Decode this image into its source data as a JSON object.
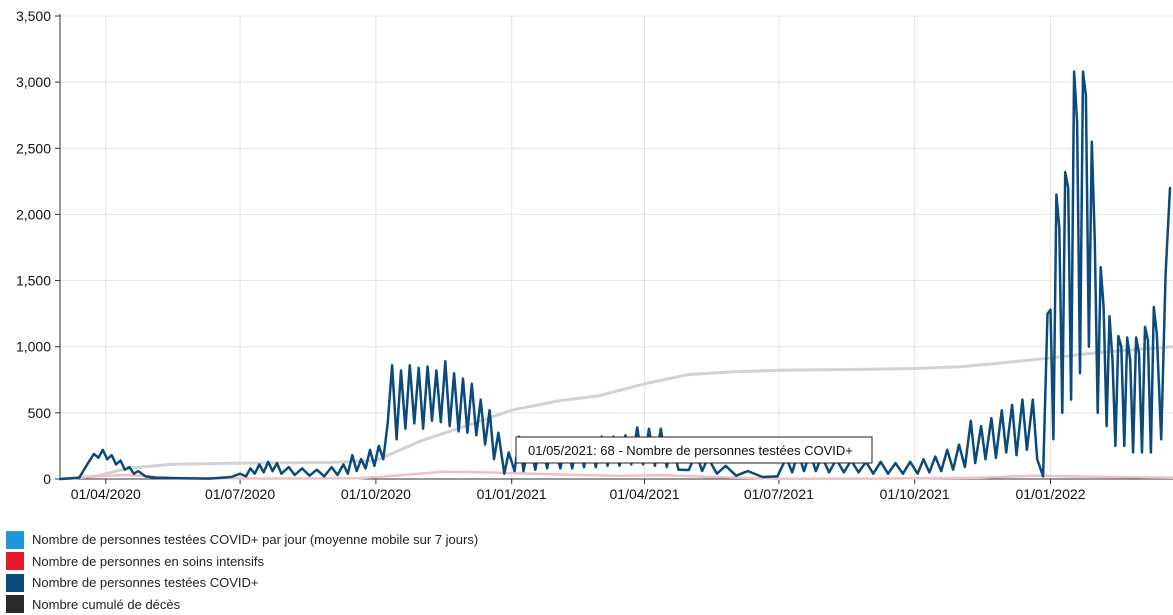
{
  "chart_data": {
    "type": "line",
    "x_axis": {
      "tick_labels": [
        "01/04/2020",
        "01/07/2020",
        "01/10/2020",
        "01/01/2021",
        "01/04/2021",
        "01/07/2021",
        "01/10/2021",
        "01/01/2022"
      ],
      "tick_dates": [
        "2020-04-01",
        "2020-07-01",
        "2020-10-01",
        "2021-01-01",
        "2021-04-01",
        "2021-07-01",
        "2021-10-01",
        "2022-01-01"
      ],
      "range": [
        "2020-03-01",
        "2022-03-25"
      ]
    },
    "y_axis": {
      "tick_labels": [
        "0",
        "500",
        "1,000",
        "1,500",
        "2,000",
        "2,500",
        "3,000",
        "3,500"
      ],
      "tick_values": [
        0,
        500,
        1000,
        1500,
        2000,
        2500,
        3000,
        3500
      ],
      "ylim": [
        0,
        3500
      ]
    },
    "grid": true,
    "legend_placement": "bottom-left",
    "series": [
      {
        "name": "Nombre de personnes testées COVID+ par jour (moyenne mobile sur 7 jours)",
        "color": "#1a9ad9",
        "points": []
      },
      {
        "name": "Nombre de personnes en soins intensifs",
        "color": "#e8192c",
        "points": [
          [
            "2020-03-01",
            0
          ],
          [
            "2020-03-25",
            20
          ],
          [
            "2020-04-15",
            30
          ],
          [
            "2020-05-15",
            10
          ],
          [
            "2020-07-15",
            3
          ],
          [
            "2020-09-20",
            5
          ],
          [
            "2020-10-20",
            30
          ],
          [
            "2020-11-15",
            55
          ],
          [
            "2020-12-15",
            50
          ],
          [
            "2021-01-15",
            40
          ],
          [
            "2021-02-15",
            30
          ],
          [
            "2021-03-15",
            25
          ],
          [
            "2021-04-15",
            28
          ],
          [
            "2021-05-15",
            15
          ],
          [
            "2021-07-01",
            2
          ],
          [
            "2021-09-01",
            3
          ],
          [
            "2021-11-15",
            10
          ],
          [
            "2021-12-20",
            25
          ],
          [
            "2022-01-15",
            20
          ],
          [
            "2022-03-25",
            10
          ]
        ]
      },
      {
        "name": "Nombre de personnes testées COVID+",
        "color": "#0b4a7d",
        "points": [
          [
            "2020-03-01",
            0
          ],
          [
            "2020-03-14",
            10
          ],
          [
            "2020-03-20",
            120
          ],
          [
            "2020-03-24",
            190
          ],
          [
            "2020-03-27",
            160
          ],
          [
            "2020-03-30",
            220
          ],
          [
            "2020-04-02",
            150
          ],
          [
            "2020-04-05",
            180
          ],
          [
            "2020-04-08",
            110
          ],
          [
            "2020-04-11",
            140
          ],
          [
            "2020-04-14",
            70
          ],
          [
            "2020-04-17",
            90
          ],
          [
            "2020-04-20",
            40
          ],
          [
            "2020-04-23",
            60
          ],
          [
            "2020-04-28",
            20
          ],
          [
            "2020-05-05",
            10
          ],
          [
            "2020-05-20",
            5
          ],
          [
            "2020-06-10",
            3
          ],
          [
            "2020-06-25",
            15
          ],
          [
            "2020-07-01",
            40
          ],
          [
            "2020-07-05",
            20
          ],
          [
            "2020-07-08",
            80
          ],
          [
            "2020-07-11",
            40
          ],
          [
            "2020-07-14",
            110
          ],
          [
            "2020-07-17",
            50
          ],
          [
            "2020-07-20",
            130
          ],
          [
            "2020-07-23",
            60
          ],
          [
            "2020-07-26",
            120
          ],
          [
            "2020-07-29",
            40
          ],
          [
            "2020-08-03",
            90
          ],
          [
            "2020-08-07",
            30
          ],
          [
            "2020-08-12",
            80
          ],
          [
            "2020-08-17",
            25
          ],
          [
            "2020-08-22",
            70
          ],
          [
            "2020-08-27",
            20
          ],
          [
            "2020-09-01",
            90
          ],
          [
            "2020-09-05",
            30
          ],
          [
            "2020-09-09",
            110
          ],
          [
            "2020-09-12",
            40
          ],
          [
            "2020-09-15",
            180
          ],
          [
            "2020-09-18",
            60
          ],
          [
            "2020-09-21",
            150
          ],
          [
            "2020-09-24",
            80
          ],
          [
            "2020-09-27",
            220
          ],
          [
            "2020-09-30",
            100
          ],
          [
            "2020-10-03",
            250
          ],
          [
            "2020-10-06",
            150
          ],
          [
            "2020-10-09",
            420
          ],
          [
            "2020-10-12",
            860
          ],
          [
            "2020-10-15",
            300
          ],
          [
            "2020-10-18",
            820
          ],
          [
            "2020-10-21",
            380
          ],
          [
            "2020-10-24",
            860
          ],
          [
            "2020-10-27",
            420
          ],
          [
            "2020-10-30",
            840
          ],
          [
            "2020-11-02",
            380
          ],
          [
            "2020-11-05",
            850
          ],
          [
            "2020-11-08",
            440
          ],
          [
            "2020-11-11",
            820
          ],
          [
            "2020-11-14",
            430
          ],
          [
            "2020-11-17",
            890
          ],
          [
            "2020-11-20",
            400
          ],
          [
            "2020-11-23",
            800
          ],
          [
            "2020-11-26",
            360
          ],
          [
            "2020-11-29",
            760
          ],
          [
            "2020-12-02",
            350
          ],
          [
            "2020-12-05",
            720
          ],
          [
            "2020-12-08",
            330
          ],
          [
            "2020-12-11",
            600
          ],
          [
            "2020-12-14",
            260
          ],
          [
            "2020-12-17",
            520
          ],
          [
            "2020-12-20",
            150
          ],
          [
            "2020-12-23",
            350
          ],
          [
            "2020-12-27",
            40
          ],
          [
            "2020-12-30",
            200
          ],
          [
            "2021-01-03",
            60
          ],
          [
            "2021-01-06",
            320
          ],
          [
            "2021-01-09",
            60
          ],
          [
            "2021-01-13",
            290
          ],
          [
            "2021-01-17",
            70
          ],
          [
            "2021-01-21",
            300
          ],
          [
            "2021-01-25",
            80
          ],
          [
            "2021-01-29",
            280
          ],
          [
            "2021-02-03",
            80
          ],
          [
            "2021-02-07",
            290
          ],
          [
            "2021-02-11",
            80
          ],
          [
            "2021-02-15",
            300
          ],
          [
            "2021-02-19",
            90
          ],
          [
            "2021-02-23",
            310
          ],
          [
            "2021-02-27",
            90
          ],
          [
            "2021-03-03",
            320
          ],
          [
            "2021-03-07",
            100
          ],
          [
            "2021-03-11",
            320
          ],
          [
            "2021-03-15",
            100
          ],
          [
            "2021-03-19",
            330
          ],
          [
            "2021-03-23",
            110
          ],
          [
            "2021-03-27",
            390
          ],
          [
            "2021-03-31",
            110
          ],
          [
            "2021-04-04",
            380
          ],
          [
            "2021-04-08",
            100
          ],
          [
            "2021-04-12",
            380
          ],
          [
            "2021-04-16",
            90
          ],
          [
            "2021-04-20",
            250
          ],
          [
            "2021-04-24",
            70
          ],
          [
            "2021-05-01",
            68
          ],
          [
            "2021-05-06",
            200
          ],
          [
            "2021-05-10",
            60
          ],
          [
            "2021-05-14",
            160
          ],
          [
            "2021-05-20",
            40
          ],
          [
            "2021-05-26",
            100
          ],
          [
            "2021-06-02",
            25
          ],
          [
            "2021-06-10",
            60
          ],
          [
            "2021-06-20",
            15
          ],
          [
            "2021-06-30",
            20
          ],
          [
            "2021-07-06",
            160
          ],
          [
            "2021-07-10",
            50
          ],
          [
            "2021-07-14",
            200
          ],
          [
            "2021-07-18",
            60
          ],
          [
            "2021-07-22",
            200
          ],
          [
            "2021-07-26",
            60
          ],
          [
            "2021-07-30",
            170
          ],
          [
            "2021-08-04",
            50
          ],
          [
            "2021-08-09",
            150
          ],
          [
            "2021-08-14",
            50
          ],
          [
            "2021-08-19",
            140
          ],
          [
            "2021-08-24",
            50
          ],
          [
            "2021-08-29",
            130
          ],
          [
            "2021-09-03",
            40
          ],
          [
            "2021-09-08",
            130
          ],
          [
            "2021-09-13",
            40
          ],
          [
            "2021-09-18",
            120
          ],
          [
            "2021-09-23",
            40
          ],
          [
            "2021-09-28",
            130
          ],
          [
            "2021-10-03",
            40
          ],
          [
            "2021-10-07",
            150
          ],
          [
            "2021-10-11",
            50
          ],
          [
            "2021-10-15",
            170
          ],
          [
            "2021-10-19",
            60
          ],
          [
            "2021-10-23",
            220
          ],
          [
            "2021-10-27",
            70
          ],
          [
            "2021-10-31",
            260
          ],
          [
            "2021-11-04",
            90
          ],
          [
            "2021-11-08",
            440
          ],
          [
            "2021-11-11",
            120
          ],
          [
            "2021-11-15",
            400
          ],
          [
            "2021-11-18",
            150
          ],
          [
            "2021-11-22",
            460
          ],
          [
            "2021-11-25",
            160
          ],
          [
            "2021-11-29",
            520
          ],
          [
            "2021-12-02",
            200
          ],
          [
            "2021-12-06",
            560
          ],
          [
            "2021-12-09",
            180
          ],
          [
            "2021-12-13",
            600
          ],
          [
            "2021-12-16",
            220
          ],
          [
            "2021-12-20",
            600
          ],
          [
            "2021-12-23",
            150
          ],
          [
            "2021-12-27",
            20
          ],
          [
            "2021-12-30",
            1250
          ],
          [
            "2022-01-01",
            1280
          ],
          [
            "2022-01-03",
            300
          ],
          [
            "2022-01-05",
            2150
          ],
          [
            "2022-01-07",
            1900
          ],
          [
            "2022-01-09",
            500
          ],
          [
            "2022-01-11",
            2320
          ],
          [
            "2022-01-13",
            2200
          ],
          [
            "2022-01-15",
            600
          ],
          [
            "2022-01-17",
            3080
          ],
          [
            "2022-01-19",
            2700
          ],
          [
            "2022-01-21",
            800
          ],
          [
            "2022-01-23",
            3080
          ],
          [
            "2022-01-25",
            2900
          ],
          [
            "2022-01-27",
            1000
          ],
          [
            "2022-01-29",
            2550
          ],
          [
            "2022-01-31",
            1800
          ],
          [
            "2022-02-02",
            500
          ],
          [
            "2022-02-04",
            1600
          ],
          [
            "2022-02-06",
            1300
          ],
          [
            "2022-02-08",
            400
          ],
          [
            "2022-02-10",
            1230
          ],
          [
            "2022-02-12",
            900
          ],
          [
            "2022-02-14",
            250
          ],
          [
            "2022-02-16",
            1080
          ],
          [
            "2022-02-18",
            1000
          ],
          [
            "2022-02-20",
            250
          ],
          [
            "2022-02-22",
            1070
          ],
          [
            "2022-02-24",
            900
          ],
          [
            "2022-02-26",
            200
          ],
          [
            "2022-02-28",
            1070
          ],
          [
            "2022-03-02",
            950
          ],
          [
            "2022-03-04",
            200
          ],
          [
            "2022-03-06",
            1150
          ],
          [
            "2022-03-08",
            1050
          ],
          [
            "2022-03-10",
            200
          ],
          [
            "2022-03-12",
            1300
          ],
          [
            "2022-03-14",
            1100
          ],
          [
            "2022-03-17",
            300
          ],
          [
            "2022-03-20",
            1550
          ],
          [
            "2022-03-23",
            2200
          ]
        ]
      },
      {
        "name": "Nombre cumulé de décès",
        "color": "#2b2b2b",
        "points": [
          [
            "2020-03-01",
            0
          ],
          [
            "2020-03-25",
            20
          ],
          [
            "2020-04-15",
            80
          ],
          [
            "2020-05-15",
            110
          ],
          [
            "2020-07-01",
            120
          ],
          [
            "2020-09-01",
            125
          ],
          [
            "2020-10-01",
            140
          ],
          [
            "2020-11-01",
            290
          ],
          [
            "2020-12-01",
            400
          ],
          [
            "2021-01-01",
            520
          ],
          [
            "2021-02-01",
            590
          ],
          [
            "2021-03-01",
            630
          ],
          [
            "2021-04-01",
            720
          ],
          [
            "2021-05-01",
            790
          ],
          [
            "2021-06-01",
            810
          ],
          [
            "2021-07-01",
            822
          ],
          [
            "2021-09-01",
            830
          ],
          [
            "2021-10-01",
            835
          ],
          [
            "2021-11-01",
            848
          ],
          [
            "2021-12-01",
            880
          ],
          [
            "2022-01-01",
            915
          ],
          [
            "2022-02-01",
            955
          ],
          [
            "2022-03-01",
            980
          ],
          [
            "2022-03-25",
            1000
          ]
        ]
      }
    ],
    "tooltip": {
      "text": "01/05/2021: 68 - Nombre de personnes testées COVID+",
      "date": "2021-05-01",
      "value": 68
    }
  },
  "legend": {
    "items": [
      {
        "label": "Nombre de personnes testées COVID+ par jour (moyenne mobile sur 7 jours)",
        "color": "#1a9ad9"
      },
      {
        "label": "Nombre de personnes en soins intensifs",
        "color": "#e8192c"
      },
      {
        "label": "Nombre de personnes testées COVID+",
        "color": "#0b4a7d"
      },
      {
        "label": "Nombre cumulé de décès",
        "color": "#2b2b2b"
      }
    ]
  }
}
